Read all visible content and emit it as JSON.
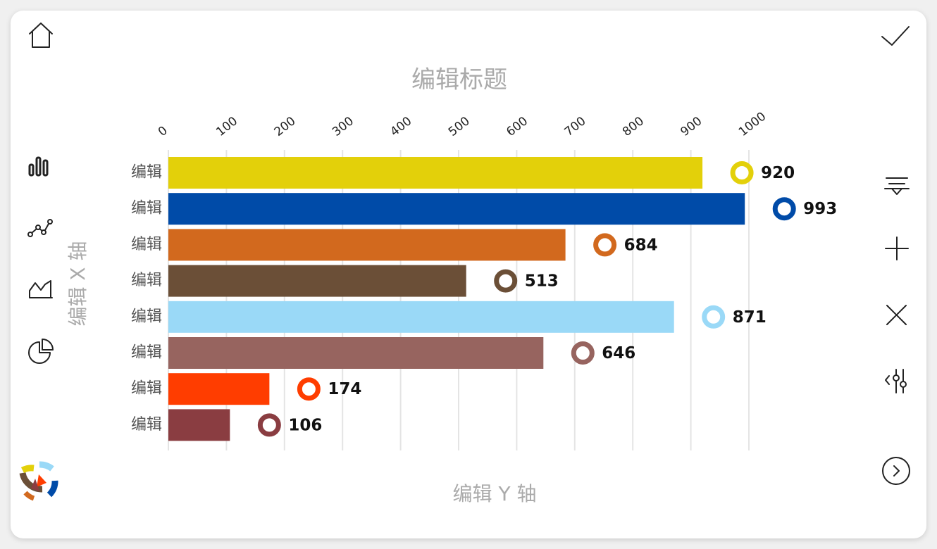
{
  "chart_data": {
    "type": "bar",
    "orientation": "horizontal",
    "title": "编辑标题",
    "x_label": "编辑 X 轴",
    "y_label": "编辑 Y 轴",
    "categories": [
      "编辑",
      "编辑",
      "编辑",
      "编辑",
      "编辑",
      "编辑",
      "编辑",
      "编辑"
    ],
    "values": [
      920,
      993,
      684,
      513,
      871,
      646,
      174,
      106
    ],
    "colors": [
      "#e3d00a",
      "#004ba8",
      "#d2691e",
      "#6b4f37",
      "#9ad9f7",
      "#97645f",
      "#ff3d00",
      "#8a3d41"
    ],
    "xlim": [
      0,
      1000
    ],
    "xticks": [
      0,
      100,
      200,
      300,
      400,
      500,
      600,
      700,
      800,
      900,
      1000
    ],
    "grid": true
  }
}
